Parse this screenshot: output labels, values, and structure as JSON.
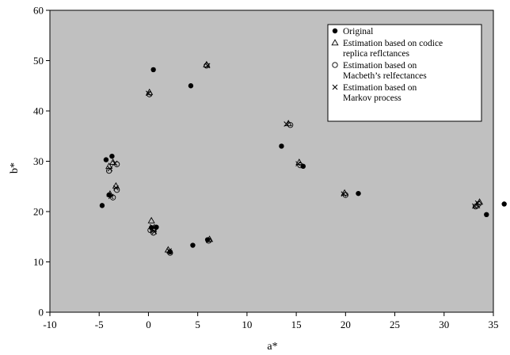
{
  "chart_data": {
    "type": "scatter",
    "xlabel": "a*",
    "ylabel": "b*",
    "xlim": [
      -10,
      35
    ],
    "ylim": [
      0,
      60
    ],
    "x_ticks": [
      -10,
      -5,
      0,
      5,
      10,
      15,
      20,
      25,
      30,
      35
    ],
    "y_ticks": [
      0,
      10,
      20,
      30,
      40,
      50,
      60
    ],
    "grid": false,
    "plot_background": "#c0c0c0",
    "legend_position": "top-right",
    "series": [
      {
        "name": "Original",
        "marker": "filled-circle",
        "points": [
          [
            0.5,
            48.2
          ],
          [
            4.3,
            45.0
          ],
          [
            13.5,
            33.0
          ],
          [
            15.7,
            29.0
          ],
          [
            -4.3,
            30.3
          ],
          [
            -3.7,
            31.0
          ],
          [
            -4.0,
            23.3
          ],
          [
            -4.7,
            21.2
          ],
          [
            0.3,
            16.8
          ],
          [
            0.8,
            16.9
          ],
          [
            2.2,
            12.0
          ],
          [
            4.5,
            13.3
          ],
          [
            21.3,
            23.6
          ],
          [
            34.3,
            19.4
          ],
          [
            36.1,
            21.5
          ],
          [
            6.0,
            14.4
          ]
        ]
      },
      {
        "name": "Estimation based on codice replica reflectances",
        "legend_lines": [
          "Estimation based on codice",
          "replica reflctances"
        ],
        "marker": "open-triangle",
        "points": [
          [
            5.9,
            49.2
          ],
          [
            0.1,
            43.7
          ],
          [
            14.2,
            37.5
          ],
          [
            15.3,
            29.8
          ],
          [
            -3.6,
            29.8
          ],
          [
            -4.0,
            29.0
          ],
          [
            -3.3,
            25.1
          ],
          [
            -3.9,
            23.5
          ],
          [
            0.3,
            18.2
          ],
          [
            0.5,
            16.5
          ],
          [
            2.0,
            12.4
          ],
          [
            6.2,
            14.5
          ],
          [
            19.9,
            23.7
          ],
          [
            33.6,
            21.9
          ],
          [
            33.3,
            21.2
          ]
        ]
      },
      {
        "name": "Estimation based on Macbeth's reflectances",
        "legend_lines": [
          "Estimation based on",
          "Macbeth’s relfectances"
        ],
        "marker": "open-circle",
        "points": [
          [
            0.1,
            43.3
          ],
          [
            5.9,
            49.0
          ],
          [
            14.4,
            37.2
          ],
          [
            15.4,
            29.2
          ],
          [
            -3.2,
            29.4
          ],
          [
            -4.0,
            28.1
          ],
          [
            -3.2,
            24.3
          ],
          [
            -3.6,
            22.8
          ],
          [
            0.5,
            15.8
          ],
          [
            0.2,
            16.3
          ],
          [
            2.2,
            11.8
          ],
          [
            6.1,
            14.2
          ],
          [
            20.0,
            23.3
          ],
          [
            33.5,
            21.5
          ],
          [
            33.2,
            21.0
          ]
        ]
      },
      {
        "name": "Estimation based on Markov process",
        "legend_lines": [
          "Estimation based on",
          "Markov process"
        ],
        "marker": "cross",
        "points": [
          [
            6.0,
            49.0
          ],
          [
            0.0,
            43.5
          ],
          [
            14.0,
            37.4
          ],
          [
            15.2,
            29.5
          ],
          [
            -3.4,
            29.6
          ],
          [
            -3.9,
            28.5
          ],
          [
            -3.3,
            24.7
          ],
          [
            -3.8,
            23.0
          ],
          [
            0.4,
            17.0
          ],
          [
            0.6,
            16.0
          ],
          [
            2.1,
            12.2
          ],
          [
            6.1,
            14.3
          ],
          [
            19.8,
            23.5
          ],
          [
            33.4,
            21.7
          ],
          [
            33.1,
            21.1
          ]
        ]
      }
    ]
  }
}
